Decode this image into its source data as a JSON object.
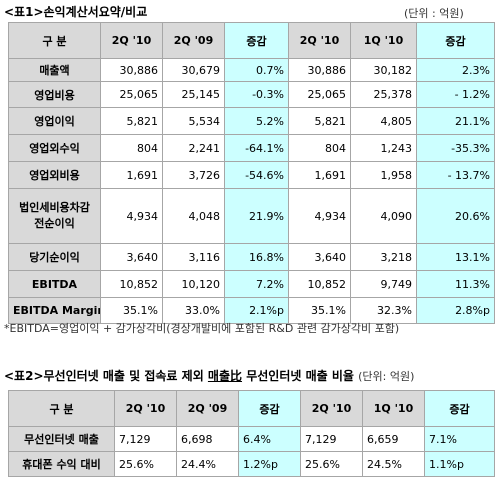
{
  "table1": {
    "caption": "<표1>손익계산서요약/비교",
    "unit": "(단위 : 억원)",
    "headers": [
      "구 분",
      "2Q '10",
      "2Q '09",
      "증감",
      "2Q '10",
      "1Q '10",
      "증감"
    ],
    "rows": [
      {
        "label": "매출액",
        "cells": [
          "30,886",
          "30,679",
          "0.7%",
          "30,886",
          "30,182",
          "2.3%"
        ]
      },
      {
        "label": "영업비용",
        "cells": [
          "25,065",
          "25,145",
          "-0.3%",
          "25,065",
          "25,378",
          "- 1.2%"
        ]
      },
      {
        "label": "영업이익",
        "cells": [
          "5,821",
          "5,534",
          "5.2%",
          "5,821",
          "4,805",
          "21.1%"
        ]
      },
      {
        "label": "영업외수익",
        "cells": [
          "804",
          "2,241",
          "-64.1%",
          "804",
          "1,243",
          "-35.3%"
        ]
      },
      {
        "label": "영업외비용",
        "cells": [
          "1,691",
          "3,726",
          "-54.6%",
          "1,691",
          "1,958",
          "- 13.7%"
        ]
      },
      {
        "label": "법인세비용차감\n전순이익",
        "cells": [
          "4,934",
          "4,048",
          "21.9%",
          "4,934",
          "4,090",
          "20.6%"
        ]
      },
      {
        "label": "당기순이익",
        "cells": [
          "3,640",
          "3,116",
          "16.8%",
          "3,640",
          "3,218",
          "13.1%"
        ]
      },
      {
        "label": "EBITDA",
        "cells": [
          "10,852",
          "10,120",
          "7.2%",
          "10,852",
          "9,749",
          "11.3%"
        ]
      },
      {
        "label": "EBITDA Margin",
        "cells": [
          "35.1%",
          "33.0%",
          "2.1%p",
          "35.1%",
          "32.3%",
          "2.8%p"
        ]
      }
    ],
    "note": "*EBITDA=영업이익 + 감가상각비(경상개발비에 포함된 R&D 관련 감가상각비 포함)"
  },
  "table2": {
    "caption_a": "<표2>무선인터넷 매출 및 접속료 제외 ",
    "caption_b": "매출比",
    "caption_c": " 무선인터넷 매출 비율",
    "unit": "(단위: 억원)",
    "headers": [
      "구 분",
      "2Q '10",
      "2Q '09",
      "증감",
      "2Q '10",
      "1Q '10",
      "증감"
    ],
    "rows": [
      {
        "label": "무선인터넷 매출",
        "cells": [
          "7,129",
          "6,698",
          "6.4%",
          "7,129",
          "6,659",
          "7.1%"
        ]
      },
      {
        "label": "휴대폰 수익 대비",
        "cells": [
          "25.6%",
          "24.4%",
          "1.2%p",
          "25.6%",
          "24.5%",
          "1.1%p"
        ]
      }
    ]
  }
}
